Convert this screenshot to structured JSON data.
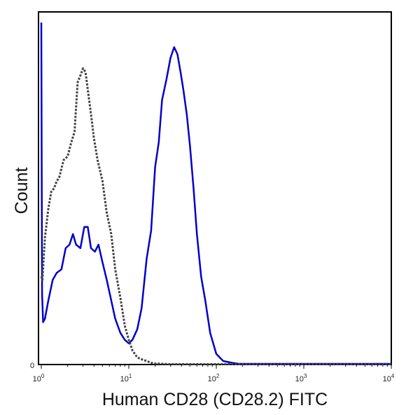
{
  "chart_data": {
    "type": "line",
    "title": "",
    "xlabel": "Human CD28 (CD28.2) FITC",
    "ylabel": "Count",
    "x_scale": "log",
    "xlim": [
      1,
      10000
    ],
    "ylim": [
      0,
      1
    ],
    "y_tick_labels": [
      "0"
    ],
    "x_tick_labels": [
      {
        "base": "10",
        "exp": "0"
      },
      {
        "base": "10",
        "exp": "1"
      },
      {
        "base": "10",
        "exp": "2"
      },
      {
        "base": "10",
        "exp": "3"
      },
      {
        "base": "10",
        "exp": "4"
      }
    ],
    "grid": false,
    "legend": "none",
    "series": [
      {
        "color": "#0000cc",
        "style": "solid",
        "x": [
          1,
          1.02,
          1.05,
          1.1,
          1.2,
          1.35,
          1.5,
          1.7,
          1.9,
          2.1,
          2.3,
          2.5,
          2.8,
          3.1,
          3.4,
          3.7,
          4.1,
          4.5,
          5,
          5.6,
          6.2,
          7,
          8,
          9,
          10,
          11,
          12.5,
          14,
          16,
          18,
          20,
          22,
          24,
          27,
          30,
          33,
          36,
          39,
          42,
          46,
          50,
          55,
          60,
          67,
          75,
          85,
          100,
          120,
          150,
          180,
          250,
          500,
          1000,
          3000,
          10000
        ],
        "y": [
          0.97,
          0.2,
          0.12,
          0.13,
          0.18,
          0.24,
          0.26,
          0.27,
          0.33,
          0.34,
          0.37,
          0.34,
          0.33,
          0.39,
          0.39,
          0.33,
          0.32,
          0.34,
          0.29,
          0.24,
          0.19,
          0.13,
          0.09,
          0.07,
          0.06,
          0.07,
          0.1,
          0.16,
          0.3,
          0.38,
          0.56,
          0.63,
          0.75,
          0.81,
          0.87,
          0.9,
          0.88,
          0.83,
          0.78,
          0.71,
          0.62,
          0.5,
          0.37,
          0.25,
          0.18,
          0.09,
          0.03,
          0.01,
          0.005,
          0.002,
          0.002,
          0.002,
          0.002,
          0.002,
          0.002
        ]
      },
      {
        "color": "#444444",
        "style": "dashed",
        "x": [
          1,
          1.03,
          1.1,
          1.2,
          1.3,
          1.4,
          1.5,
          1.6,
          1.8,
          2,
          2.2,
          2.4,
          2.6,
          2.8,
          3,
          3.2,
          3.4,
          3.7,
          4,
          4.4,
          5,
          5.6,
          6.3,
          7,
          8,
          9,
          10,
          11,
          12.5,
          14,
          16,
          18,
          20,
          25,
          30,
          40,
          60,
          100,
          300,
          1000,
          10000
        ],
        "y": [
          0.25,
          0.24,
          0.36,
          0.44,
          0.49,
          0.5,
          0.52,
          0.53,
          0.58,
          0.59,
          0.63,
          0.66,
          0.8,
          0.82,
          0.84,
          0.83,
          0.78,
          0.71,
          0.64,
          0.58,
          0.52,
          0.43,
          0.37,
          0.27,
          0.19,
          0.11,
          0.07,
          0.04,
          0.02,
          0.015,
          0.01,
          0.005,
          0.003,
          0.002,
          0.001,
          0.001,
          0.001,
          0.001,
          0.001,
          0.001,
          0.001
        ]
      }
    ]
  }
}
